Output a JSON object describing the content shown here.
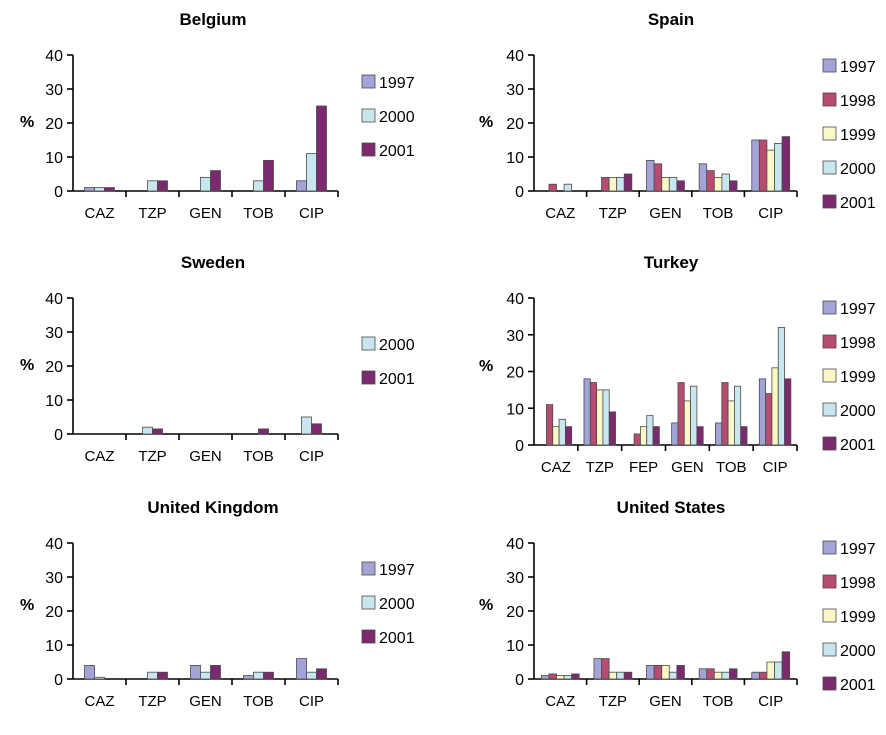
{
  "colors": {
    "1997": "#a2a4d8",
    "1998": "#b84c70",
    "1999": "#fbf8c8",
    "2000": "#c8e6ee",
    "2001": "#7c2a70"
  },
  "chart_data": [
    {
      "type": "bar",
      "title": "Belgium",
      "ylabel": "%",
      "ylim": [
        0,
        40
      ],
      "yticks": [
        "0",
        "10",
        "20",
        "30",
        "40"
      ],
      "categories": [
        "CAZ",
        "TZP",
        "GEN",
        "TOB",
        "CIP"
      ],
      "series": [
        {
          "name": "1997",
          "values": [
            1,
            0,
            0,
            0,
            3
          ]
        },
        {
          "name": "2000",
          "values": [
            1,
            3,
            4,
            3,
            11
          ]
        },
        {
          "name": "2001",
          "values": [
            1,
            3,
            6,
            9,
            25
          ]
        }
      ]
    },
    {
      "type": "bar",
      "title": "Spain",
      "ylabel": "%",
      "ylim": [
        0,
        40
      ],
      "yticks": [
        "0",
        "10",
        "20",
        "30",
        "40"
      ],
      "categories": [
        "CAZ",
        "TZP",
        "GEN",
        "TOB",
        "CIP"
      ],
      "series": [
        {
          "name": "1997",
          "values": [
            0,
            0,
            9,
            8,
            15
          ]
        },
        {
          "name": "1998",
          "values": [
            2,
            4,
            8,
            6,
            15
          ]
        },
        {
          "name": "1999",
          "values": [
            0,
            4,
            4,
            4,
            12
          ]
        },
        {
          "name": "2000",
          "values": [
            2,
            4,
            4,
            5,
            14
          ]
        },
        {
          "name": "2001",
          "values": [
            0,
            5,
            3,
            3,
            16
          ]
        }
      ]
    },
    {
      "type": "bar",
      "title": "Sweden",
      "ylabel": "%",
      "ylim": [
        0,
        40
      ],
      "yticks": [
        "0",
        "10",
        "20",
        "30",
        "40"
      ],
      "categories": [
        "CAZ",
        "TZP",
        "GEN",
        "TOB",
        "CIP"
      ],
      "series": [
        {
          "name": "2000",
          "values": [
            0,
            2,
            0,
            0,
            5
          ]
        },
        {
          "name": "2001",
          "values": [
            0,
            1.5,
            0,
            1.5,
            3
          ]
        }
      ]
    },
    {
      "type": "bar",
      "title": "Turkey",
      "ylabel": "%",
      "ylim": [
        0,
        40
      ],
      "yticks": [
        "0",
        "10",
        "20",
        "30",
        "40"
      ],
      "categories": [
        "CAZ",
        "TZP",
        "FEP",
        "GEN",
        "TOB",
        "CIP"
      ],
      "series": [
        {
          "name": "1997",
          "values": [
            0,
            18,
            0,
            6,
            6,
            18
          ]
        },
        {
          "name": "1998",
          "values": [
            11,
            17,
            3,
            17,
            17,
            14
          ]
        },
        {
          "name": "1999",
          "values": [
            5,
            15,
            5,
            12,
            12,
            21
          ]
        },
        {
          "name": "2000",
          "values": [
            7,
            15,
            8,
            16,
            16,
            32
          ]
        },
        {
          "name": "2001",
          "values": [
            5,
            9,
            5,
            5,
            5,
            18
          ]
        }
      ]
    },
    {
      "type": "bar",
      "title": "United Kingdom",
      "ylabel": "%",
      "ylim": [
        0,
        40
      ],
      "yticks": [
        "0",
        "10",
        "20",
        "30",
        "40"
      ],
      "categories": [
        "CAZ",
        "TZP",
        "GEN",
        "TOB",
        "CIP"
      ],
      "series": [
        {
          "name": "1997",
          "values": [
            4,
            0,
            4,
            1,
            6
          ]
        },
        {
          "name": "2000",
          "values": [
            0.5,
            2,
            2,
            2,
            2
          ]
        },
        {
          "name": "2001",
          "values": [
            0,
            2,
            4,
            2,
            3
          ]
        }
      ]
    },
    {
      "type": "bar",
      "title": "United States",
      "ylabel": "%",
      "ylim": [
        0,
        40
      ],
      "yticks": [
        "0",
        "10",
        "20",
        "30",
        "40"
      ],
      "categories": [
        "CAZ",
        "TZP",
        "GEN",
        "TOB",
        "CIP"
      ],
      "series": [
        {
          "name": "1997",
          "values": [
            1,
            6,
            4,
            3,
            2
          ]
        },
        {
          "name": "1998",
          "values": [
            1.5,
            6,
            4,
            3,
            2
          ]
        },
        {
          "name": "1999",
          "values": [
            1,
            2,
            4,
            2,
            5
          ]
        },
        {
          "name": "2000",
          "values": [
            1,
            2,
            2,
            2,
            5
          ]
        },
        {
          "name": "2001",
          "values": [
            1.5,
            2,
            4,
            3,
            8
          ]
        }
      ]
    }
  ]
}
